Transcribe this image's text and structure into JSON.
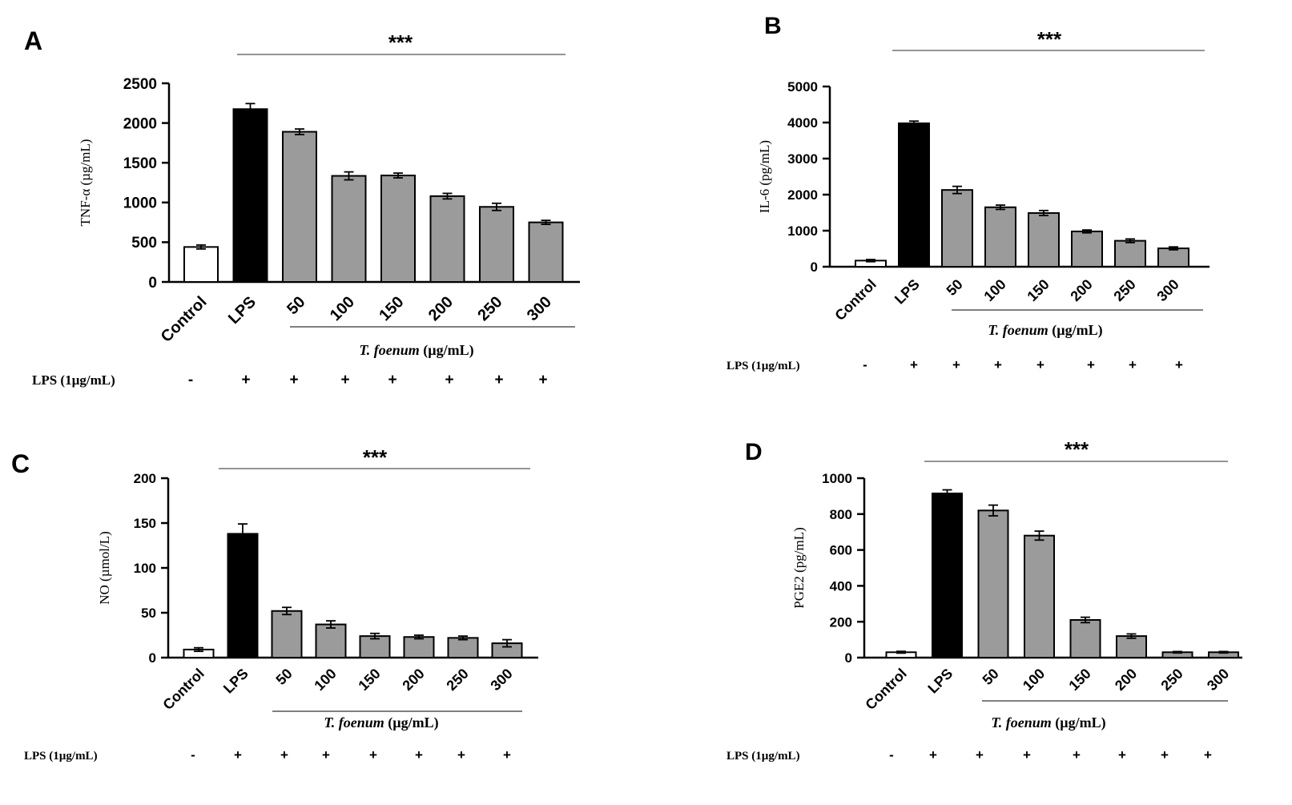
{
  "chart_data": [
    {
      "panel_label": "A",
      "type": "bar",
      "ylabel": "TNF-α (µg/mL)",
      "ylim": [
        0,
        2500
      ],
      "yticks": [
        "0",
        "500",
        "1000",
        "1500",
        "2000",
        "2500"
      ],
      "categories": [
        "Control",
        "LPS",
        "50",
        "100",
        "150",
        "200",
        "250",
        "300"
      ],
      "values": [
        440,
        2175,
        1890,
        1335,
        1340,
        1080,
        945,
        750
      ],
      "errors": [
        25,
        70,
        35,
        50,
        30,
        35,
        45,
        25
      ],
      "bar_colors": [
        "#ffffff",
        "#000000",
        "#9b9b9b",
        "#9b9b9b",
        "#9b9b9b",
        "#9b9b9b",
        "#9b9b9b",
        "#9b9b9b"
      ],
      "significance": "***",
      "group_label": "T. foenum (µg/mL)",
      "lps_row_label": "LPS (1µg/mL)",
      "lps_row": [
        "-",
        "+",
        "+",
        "+",
        "+",
        "+",
        "+",
        "+"
      ]
    },
    {
      "panel_label": "B",
      "type": "bar",
      "ylabel": "IL-6 (pg/mL)",
      "ylim": [
        0,
        5000
      ],
      "yticks": [
        "0",
        "1000",
        "2000",
        "3000",
        "4000",
        "5000"
      ],
      "categories": [
        "Control",
        "LPS",
        "50",
        "100",
        "150",
        "200",
        "250",
        "300"
      ],
      "values": [
        170,
        3980,
        2130,
        1650,
        1490,
        980,
        720,
        510
      ],
      "errors": [
        30,
        60,
        100,
        60,
        70,
        40,
        50,
        40
      ],
      "bar_colors": [
        "#ffffff",
        "#000000",
        "#9b9b9b",
        "#9b9b9b",
        "#9b9b9b",
        "#9b9b9b",
        "#9b9b9b",
        "#9b9b9b"
      ],
      "significance": "***",
      "group_label": "T. foenum (µg/mL)",
      "lps_row_label": "LPS (1µg/mL)",
      "lps_row": [
        "-",
        "+",
        "+",
        "+",
        "+",
        "+",
        "+",
        "+"
      ]
    },
    {
      "panel_label": "C",
      "type": "bar",
      "ylabel": "NO (µmol/L)",
      "ylim": [
        0,
        200
      ],
      "yticks": [
        "0",
        "50",
        "100",
        "150",
        "200"
      ],
      "categories": [
        "Control",
        "LPS",
        "50",
        "100",
        "150",
        "200",
        "250",
        "300"
      ],
      "values": [
        9,
        138,
        52,
        37,
        24,
        23,
        22,
        16
      ],
      "errors": [
        2,
        11,
        4,
        4,
        3,
        2,
        2,
        4
      ],
      "bar_colors": [
        "#ffffff",
        "#000000",
        "#9b9b9b",
        "#9b9b9b",
        "#9b9b9b",
        "#9b9b9b",
        "#9b9b9b",
        "#9b9b9b"
      ],
      "significance": "***",
      "group_label": "T. foenum (µg/mL)",
      "lps_row_label": "LPS (1µg/mL)",
      "lps_row": [
        "-",
        "+",
        "+",
        "+",
        "+",
        "+",
        "+",
        "+"
      ]
    },
    {
      "panel_label": "D",
      "type": "bar",
      "ylabel": "PGE2 (pg/mL)",
      "ylim": [
        0,
        1000
      ],
      "yticks": [
        "0",
        "200",
        "400",
        "600",
        "800",
        "1000"
      ],
      "categories": [
        "Control",
        "LPS",
        "50",
        "100",
        "150",
        "200",
        "250",
        "300"
      ],
      "values": [
        30,
        915,
        820,
        680,
        210,
        120,
        30,
        30
      ],
      "errors": [
        5,
        20,
        30,
        25,
        15,
        12,
        4,
        4
      ],
      "bar_colors": [
        "#ffffff",
        "#000000",
        "#9b9b9b",
        "#9b9b9b",
        "#9b9b9b",
        "#9b9b9b",
        "#9b9b9b",
        "#9b9b9b"
      ],
      "significance": "***",
      "group_label": "T. foenum (µg/mL)",
      "lps_row_label": "LPS (1µg/mL)",
      "lps_row": [
        "-",
        "+",
        "+",
        "+",
        "+",
        "+",
        "+",
        "+"
      ]
    }
  ]
}
